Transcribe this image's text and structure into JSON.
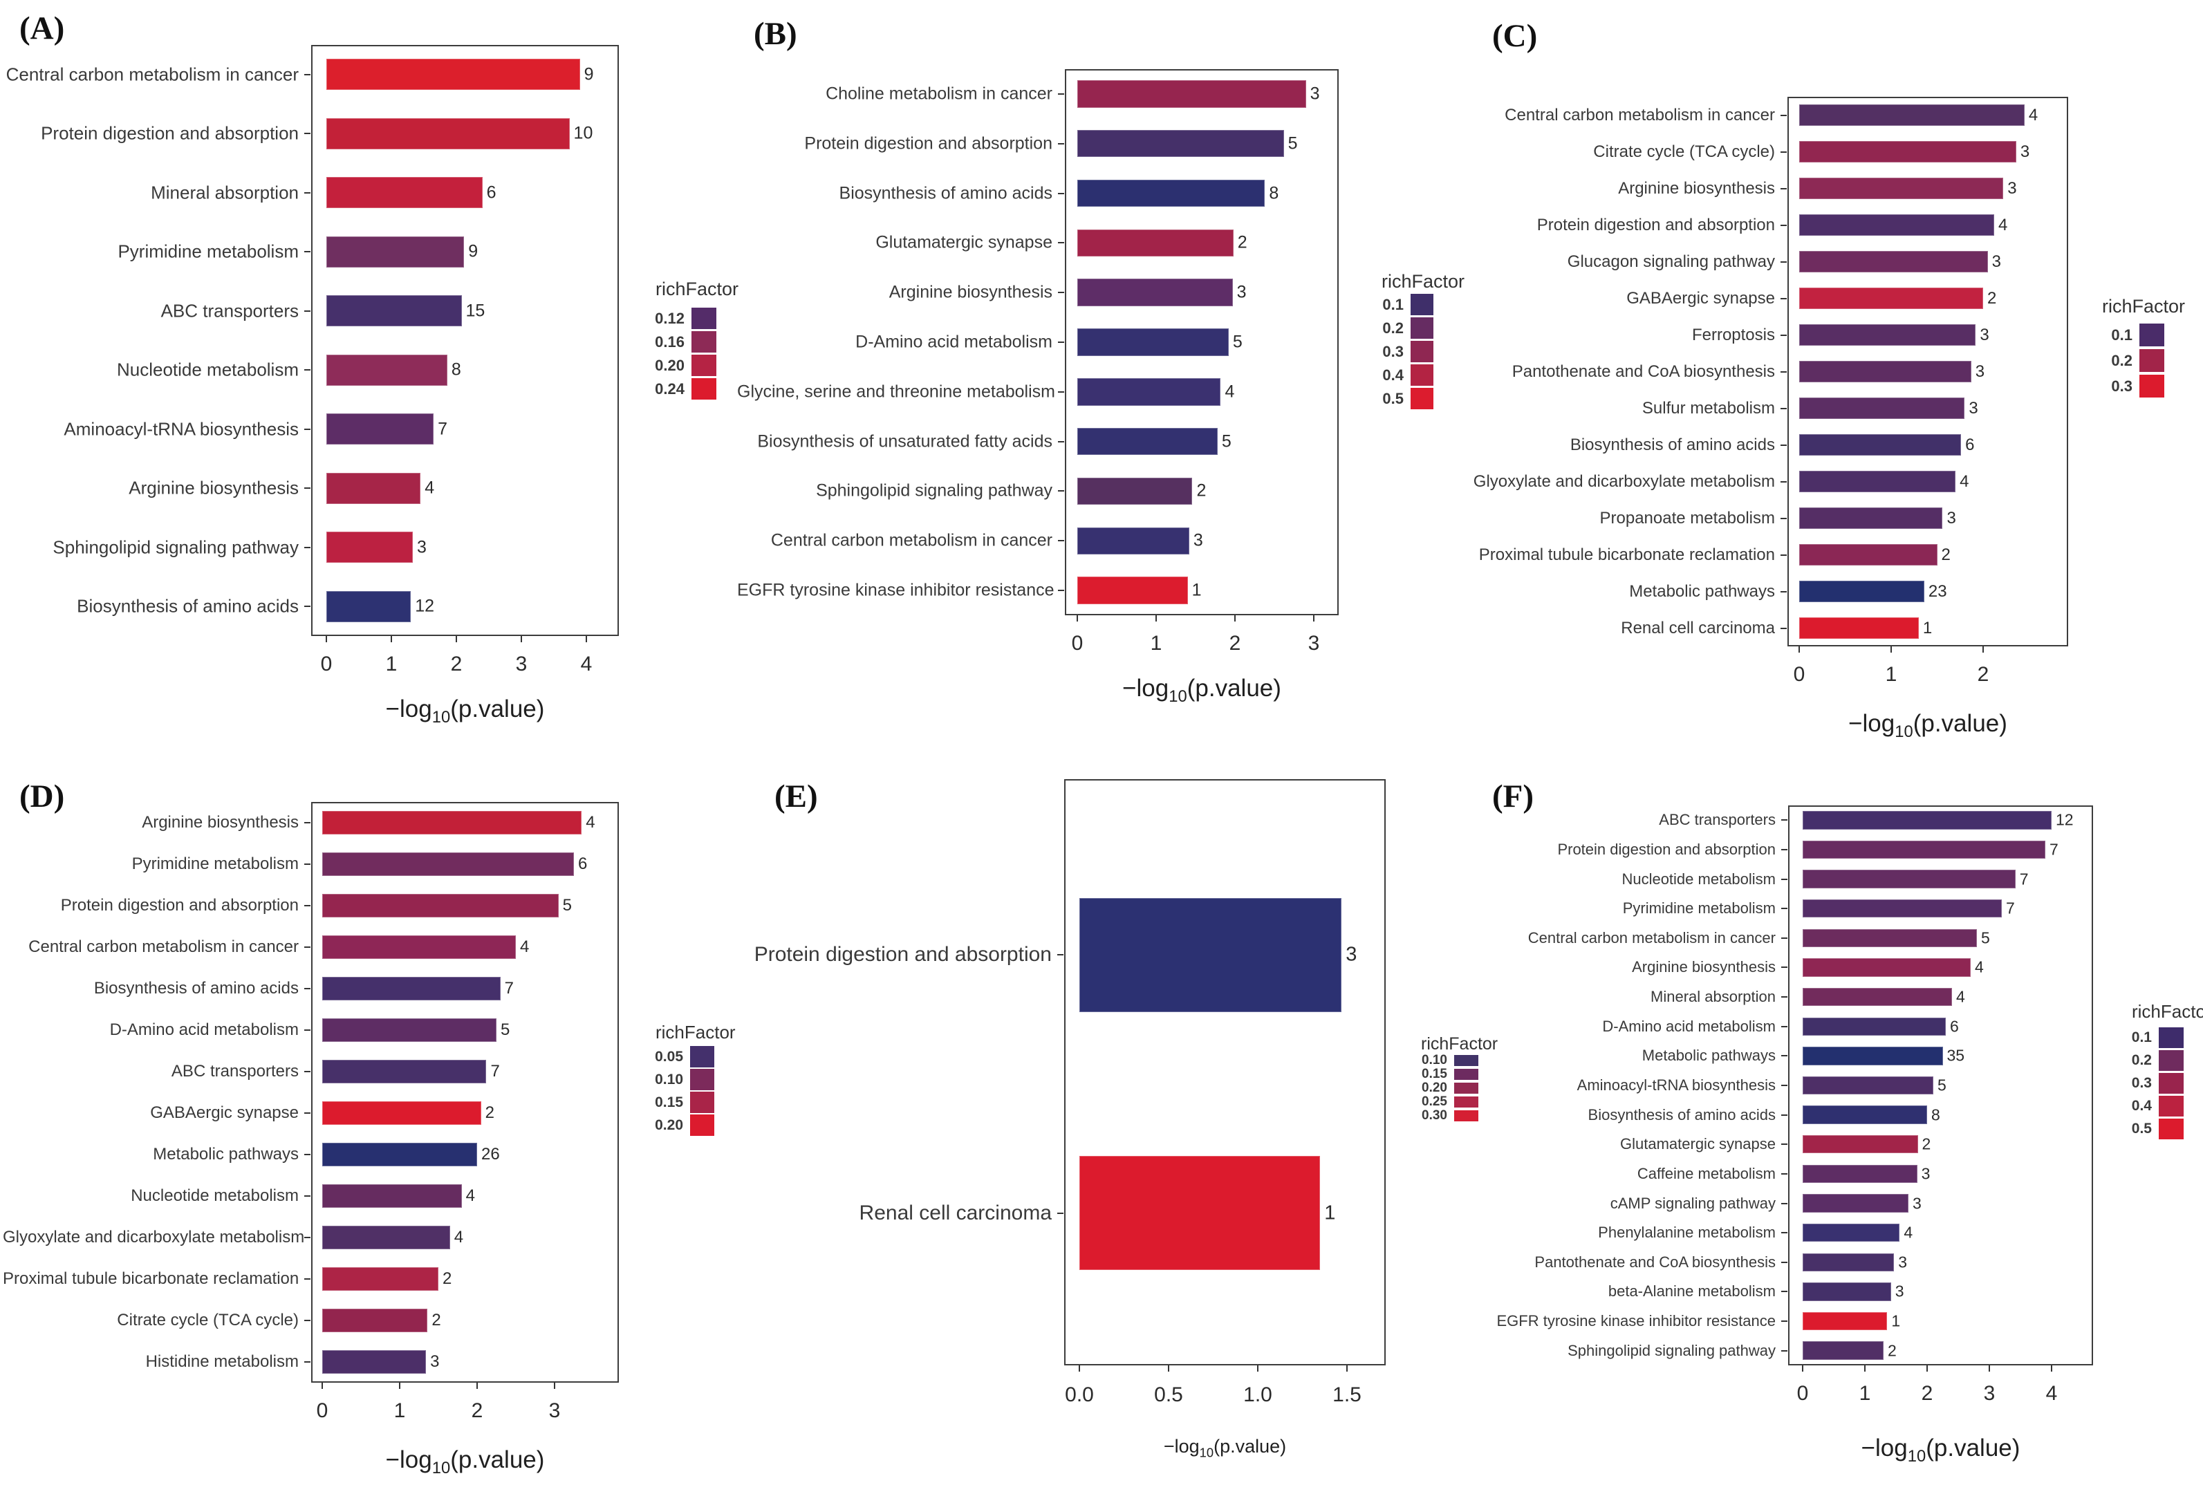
{
  "figure": {
    "axis_title": {
      "pre": "−log",
      "sub": "10",
      "post": "(p.value)"
    },
    "legend_title": "richFactor"
  },
  "chart_data": [
    {
      "id": "A",
      "panel": "(A)",
      "type": "bar",
      "xlabel": "-log10(p.value)",
      "ylabel": "",
      "x_ticks": [
        "0",
        "1",
        "2",
        "3",
        "4"
      ],
      "xlim": [
        0,
        4.55
      ],
      "grid": false,
      "legend_position": "right",
      "legend": {
        "title": "richFactor",
        "entries": [
          {
            "label": "0.12",
            "color": "#542c69"
          },
          {
            "label": "0.16",
            "color": "#8d2a56"
          },
          {
            "label": "0.20",
            "color": "#b52344"
          },
          {
            "label": "0.24",
            "color": "#dc1b2d"
          }
        ]
      },
      "bars": [
        {
          "label": "Central carbon metabolism in cancer",
          "value": 3.9,
          "count": "9",
          "color": "#dc1f2c"
        },
        {
          "label": "Protein digestion and absorption",
          "value": 3.74,
          "count": "10",
          "color": "#c32138"
        },
        {
          "label": "Mineral absorption",
          "value": 2.4,
          "count": "6",
          "color": "#c4203c"
        },
        {
          "label": "Pyrimidine metabolism",
          "value": 2.12,
          "count": "9",
          "color": "#6f2f60"
        },
        {
          "label": "ABC transporters",
          "value": 2.08,
          "count": "15",
          "color": "#46306b"
        },
        {
          "label": "Nucleotide metabolism",
          "value": 1.86,
          "count": "8",
          "color": "#8e2c59"
        },
        {
          "label": "Aminoacyl-tRNA biosynthesis",
          "value": 1.65,
          "count": "7",
          "color": "#5d2d66"
        },
        {
          "label": "Arginine biosynthesis",
          "value": 1.45,
          "count": "4",
          "color": "#a62548"
        },
        {
          "label": "Sphingolipid signaling pathway",
          "value": 1.33,
          "count": "3",
          "color": "#bc2141"
        },
        {
          "label": "Biosynthesis of amino acids",
          "value": 1.3,
          "count": "12",
          "color": "#2d3272"
        }
      ]
    },
    {
      "id": "B",
      "panel": "(B)",
      "type": "bar",
      "xlabel": "-log10(p.value)",
      "ylabel": "",
      "x_ticks": [
        "0",
        "1",
        "2",
        "3"
      ],
      "xlim": [
        0,
        3.45
      ],
      "grid": false,
      "legend_position": "right",
      "legend": {
        "title": "richFactor",
        "entries": [
          {
            "label": "0.1",
            "color": "#3f2f6a"
          },
          {
            "label": "0.2",
            "color": "#662c62"
          },
          {
            "label": "0.3",
            "color": "#8f2752"
          },
          {
            "label": "0.4",
            "color": "#b32343"
          },
          {
            "label": "0.5",
            "color": "#dc1c2e"
          }
        ]
      },
      "bars": [
        {
          "label": "Choline metabolism in cancer",
          "value": 2.9,
          "count": "3",
          "color": "#96254f"
        },
        {
          "label": "Protein digestion and absorption",
          "value": 2.62,
          "count": "5",
          "color": "#453069"
        },
        {
          "label": "Biosynthesis of amino acids",
          "value": 2.38,
          "count": "8",
          "color": "#2c3070"
        },
        {
          "label": "Glutamatergic synapse",
          "value": 1.98,
          "count": "2",
          "color": "#a22349"
        },
        {
          "label": "Arginine biosynthesis",
          "value": 1.97,
          "count": "3",
          "color": "#5e2d67"
        },
        {
          "label": "D-Amino acid metabolism",
          "value": 1.92,
          "count": "5",
          "color": "#343170"
        },
        {
          "label": "Glycine, serine and threonine metabolism",
          "value": 1.82,
          "count": "4",
          "color": "#3b3170"
        },
        {
          "label": "Biosynthesis of unsaturated fatty acids",
          "value": 1.78,
          "count": "5",
          "color": "#333170"
        },
        {
          "label": "Sphingolipid signaling pathway",
          "value": 1.46,
          "count": "2",
          "color": "#563060"
        },
        {
          "label": "Central carbon metabolism in cancer",
          "value": 1.42,
          "count": "3",
          "color": "#373170"
        },
        {
          "label": "EGFR tyrosine kinase inhibitor resistance",
          "value": 1.4,
          "count": "1",
          "color": "#dc1c2e"
        }
      ]
    },
    {
      "id": "C",
      "panel": "(C)",
      "type": "bar",
      "xlabel": "-log10(p.value)",
      "ylabel": "",
      "x_ticks": [
        "0",
        "1",
        "2"
      ],
      "xlim": [
        0,
        2.9
      ],
      "grid": false,
      "legend_position": "right",
      "legend": {
        "title": "richFactor",
        "entries": [
          {
            "label": "0.1",
            "color": "#4a2c69"
          },
          {
            "label": "0.2",
            "color": "#a22449"
          },
          {
            "label": "0.3",
            "color": "#dc1b2d"
          }
        ]
      },
      "bars": [
        {
          "label": "Central carbon metabolism in cancer",
          "value": 2.45,
          "count": "4",
          "color": "#533063"
        },
        {
          "label": "Citrate cycle (TCA cycle)",
          "value": 2.36,
          "count": "3",
          "color": "#922650"
        },
        {
          "label": "Arginine biosynthesis",
          "value": 2.22,
          "count": "3",
          "color": "#8d2955"
        },
        {
          "label": "Protein digestion and absorption",
          "value": 2.12,
          "count": "4",
          "color": "#4d2f68"
        },
        {
          "label": "Glucagon signaling pathway",
          "value": 2.05,
          "count": "3",
          "color": "#6f2c5f"
        },
        {
          "label": "GABAergic synapse",
          "value": 2.0,
          "count": "2",
          "color": "#c22240"
        },
        {
          "label": "Ferroptosis",
          "value": 1.92,
          "count": "3",
          "color": "#582e64"
        },
        {
          "label": "Pantothenate and CoA biosynthesis",
          "value": 1.87,
          "count": "3",
          "color": "#5e2d62"
        },
        {
          "label": "Sulfur metabolism",
          "value": 1.8,
          "count": "3",
          "color": "#5c2e64"
        },
        {
          "label": "Biosynthesis of amino acids",
          "value": 1.76,
          "count": "6",
          "color": "#413069"
        },
        {
          "label": "Glyoxylate and dicarboxylate metabolism",
          "value": 1.7,
          "count": "4",
          "color": "#4c2f67"
        },
        {
          "label": "Propanoate metabolism",
          "value": 1.56,
          "count": "3",
          "color": "#552e65"
        },
        {
          "label": "Proximal tubule bicarbonate reclamation",
          "value": 1.5,
          "count": "2",
          "color": "#8b2755"
        },
        {
          "label": "Metabolic pathways",
          "value": 1.36,
          "count": "23",
          "color": "#23306f"
        },
        {
          "label": "Renal cell carcinoma",
          "value": 1.3,
          "count": "1",
          "color": "#dc1b2d"
        }
      ]
    },
    {
      "id": "D",
      "panel": "(D)",
      "type": "bar",
      "xlabel": "-log10(p.value)",
      "ylabel": "",
      "x_ticks": [
        "0",
        "1",
        "2",
        "3"
      ],
      "xlim": [
        0,
        3.8
      ],
      "grid": false,
      "legend_position": "right",
      "legend": {
        "title": "richFactor",
        "entries": [
          {
            "label": "0.05",
            "color": "#44306c"
          },
          {
            "label": "0.10",
            "color": "#7c2a5b"
          },
          {
            "label": "0.15",
            "color": "#a92448"
          },
          {
            "label": "0.20",
            "color": "#dc1b2e"
          }
        ]
      },
      "bars": [
        {
          "label": "Arginine biosynthesis",
          "value": 3.35,
          "count": "4",
          "color": "#c22038"
        },
        {
          "label": "Pyrimidine metabolism",
          "value": 3.25,
          "count": "6",
          "color": "#712c5e"
        },
        {
          "label": "Protein digestion and absorption",
          "value": 3.05,
          "count": "5",
          "color": "#95254f"
        },
        {
          "label": "Central carbon metabolism in cancer",
          "value": 2.5,
          "count": "4",
          "color": "#8e2656"
        },
        {
          "label": "Biosynthesis of amino acids",
          "value": 2.3,
          "count": "7",
          "color": "#45306b"
        },
        {
          "label": "D-Amino acid metabolism",
          "value": 2.25,
          "count": "5",
          "color": "#5e2d64"
        },
        {
          "label": "ABC transporters",
          "value": 2.12,
          "count": "7",
          "color": "#473069"
        },
        {
          "label": "GABAergic synapse",
          "value": 2.05,
          "count": "2",
          "color": "#dc1b2d"
        },
        {
          "label": "Metabolic pathways",
          "value": 2.0,
          "count": "26",
          "color": "#273070"
        },
        {
          "label": "Nucleotide metabolism",
          "value": 1.8,
          "count": "4",
          "color": "#662c60"
        },
        {
          "label": "Glyoxylate and dicarboxylate metabolism",
          "value": 1.65,
          "count": "4",
          "color": "#503066"
        },
        {
          "label": "Proximal tubule bicarbonate reclamation",
          "value": 1.5,
          "count": "2",
          "color": "#ad2446"
        },
        {
          "label": "Citrate cycle (TCA cycle)",
          "value": 1.36,
          "count": "2",
          "color": "#93254e"
        },
        {
          "label": "Histidine metabolism",
          "value": 1.34,
          "count": "3",
          "color": "#4c2f68"
        }
      ]
    },
    {
      "id": "E",
      "panel": "(E)",
      "type": "bar",
      "xlabel": "-log10(p.value)",
      "ylabel": "",
      "x_ticks": [
        "0.0",
        "0.5",
        "1.0",
        "1.5"
      ],
      "xlim": [
        0,
        1.72
      ],
      "grid": false,
      "legend_position": "right",
      "legend": {
        "title": "richFactor",
        "entries": [
          {
            "label": "0.10",
            "color": "#413368"
          },
          {
            "label": "0.15",
            "color": "#6d2b60"
          },
          {
            "label": "0.20",
            "color": "#922950"
          },
          {
            "label": "0.25",
            "color": "#b02647"
          },
          {
            "label": "0.30",
            "color": "#d51f33"
          }
        ]
      },
      "bars": [
        {
          "label": "Protein digestion and absorption",
          "value": 1.47,
          "count": "3",
          "color": "#2c3172"
        },
        {
          "label": "Renal cell carcinoma",
          "value": 1.35,
          "count": "1",
          "color": "#dc1b2d"
        }
      ]
    },
    {
      "id": "F",
      "panel": "(F)",
      "type": "bar",
      "xlabel": "-log10(p.value)",
      "ylabel": "",
      "x_ticks": [
        "0",
        "1",
        "2",
        "3",
        "4"
      ],
      "xlim": [
        0,
        4.7
      ],
      "grid": false,
      "legend_position": "right",
      "legend": {
        "title": "richFactor",
        "entries": [
          {
            "label": "0.1",
            "color": "#3e2c6b"
          },
          {
            "label": "0.2",
            "color": "#6f2b5e"
          },
          {
            "label": "0.3",
            "color": "#99244d"
          },
          {
            "label": "0.4",
            "color": "#bb2240"
          },
          {
            "label": "0.5",
            "color": "#dc1b2d"
          }
        ]
      },
      "bars": [
        {
          "label": "ABC transporters",
          "value": 4.0,
          "count": "12",
          "color": "#452f6b"
        },
        {
          "label": "Protein digestion and absorption",
          "value": 3.9,
          "count": "7",
          "color": "#682c61"
        },
        {
          "label": "Nucleotide metabolism",
          "value": 3.42,
          "count": "7",
          "color": "#642d62"
        },
        {
          "label": "Pyrimidine metabolism",
          "value": 3.2,
          "count": "7",
          "color": "#542e67"
        },
        {
          "label": "Central carbon metabolism in cancer",
          "value": 2.8,
          "count": "5",
          "color": "#6c2c5e"
        },
        {
          "label": "Arginine biosynthesis",
          "value": 2.7,
          "count": "4",
          "color": "#8f2653"
        },
        {
          "label": "Mineral absorption",
          "value": 2.4,
          "count": "4",
          "color": "#722b5c"
        },
        {
          "label": "D-Amino acid metabolism",
          "value": 2.3,
          "count": "6",
          "color": "#413069"
        },
        {
          "label": "Metabolic pathways",
          "value": 2.25,
          "count": "35",
          "color": "#23306f"
        },
        {
          "label": "Aminoacyl-tRNA biosynthesis",
          "value": 2.1,
          "count": "5",
          "color": "#4e2f67"
        },
        {
          "label": "Biosynthesis of amino acids",
          "value": 2.0,
          "count": "8",
          "color": "#2f3070"
        },
        {
          "label": "Glutamatergic synapse",
          "value": 1.85,
          "count": "2",
          "color": "#a22449"
        },
        {
          "label": "Caffeine metabolism",
          "value": 1.84,
          "count": "3",
          "color": "#5e2d64"
        },
        {
          "label": "cAMP signaling pathway",
          "value": 1.7,
          "count": "3",
          "color": "#5b2e66"
        },
        {
          "label": "Phenylalanine metabolism",
          "value": 1.56,
          "count": "4",
          "color": "#393170"
        },
        {
          "label": "Pantothenate and CoA biosynthesis",
          "value": 1.47,
          "count": "3",
          "color": "#483068"
        },
        {
          "label": "beta-Alanine metabolism",
          "value": 1.42,
          "count": "3",
          "color": "#443069"
        },
        {
          "label": "EGFR tyrosine kinase inhibitor resistance",
          "value": 1.36,
          "count": "1",
          "color": "#dc1b2d"
        },
        {
          "label": "Sphingolipid signaling pathway",
          "value": 1.3,
          "count": "2",
          "color": "#512f66"
        }
      ]
    }
  ]
}
